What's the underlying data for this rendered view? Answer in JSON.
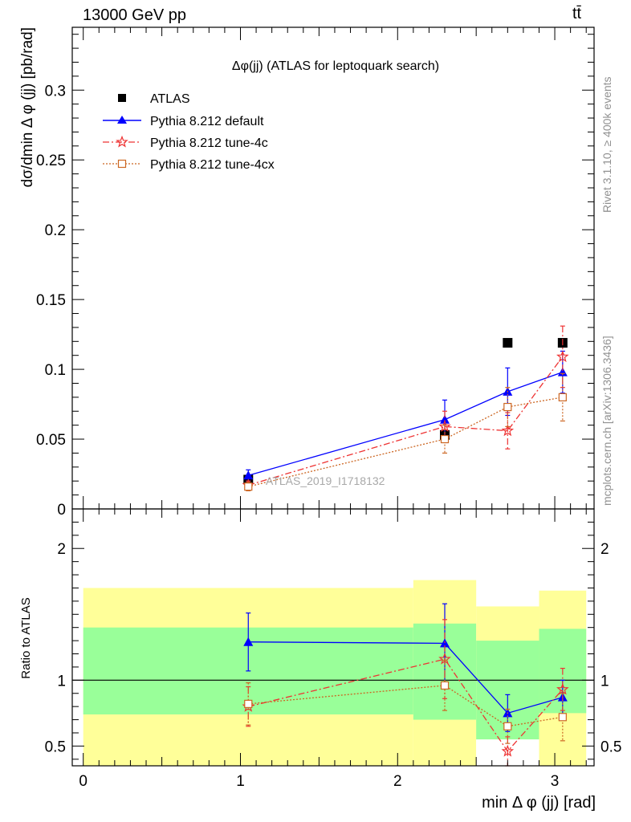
{
  "header": {
    "left": "13000 GeV pp",
    "right": "tt̄"
  },
  "side_labels": {
    "rivet": "Rivet 3.1.10, ≥ 400k events",
    "mcplots": "mcplots.cern.ch [arXiv:1306.3436]"
  },
  "chart_data": [
    {
      "type": "scatter",
      "title": "Δφ(jj) (ATLAS for leptoquark search)",
      "watermark": "ATLAS_2019_I1718132",
      "ylabel": "dσ/dmin Δ φ (jj) [pb/rad]",
      "xlim": [
        -0.07,
        3.25
      ],
      "ylim": [
        0,
        0.345
      ],
      "yticks": [
        0,
        0.05,
        0.1,
        0.15,
        0.2,
        0.25,
        0.3
      ],
      "yticklabels": [
        "0",
        "0.05",
        "0.1",
        "0.15",
        "0.2",
        "0.25",
        "0.3"
      ],
      "legend_position": "top-left",
      "series": [
        {
          "name": "ATLAS",
          "color": "#000000",
          "marker": "square-filled",
          "x": [
            1.05,
            2.3,
            2.7,
            3.05
          ],
          "y": [
            0.021,
            0.053,
            0.119,
            0.119
          ],
          "err": [
            0.0,
            0.0,
            0.0,
            0.0
          ]
        },
        {
          "name": "Pythia 8.212 default",
          "color": "#0000ff",
          "marker": "triangle",
          "line": "solid",
          "x": [
            1.05,
            2.3,
            2.7,
            3.05
          ],
          "y": [
            0.024,
            0.064,
            0.084,
            0.098
          ],
          "err": [
            0.004,
            0.014,
            0.017,
            0.015
          ]
        },
        {
          "name": "Pythia 8.212 tune-4c",
          "color": "#ee3333",
          "marker": "star",
          "line": "dashdot",
          "x": [
            1.05,
            2.3,
            2.7,
            3.05
          ],
          "y": [
            0.017,
            0.059,
            0.056,
            0.109
          ],
          "err": [
            0.003,
            0.011,
            0.013,
            0.022
          ]
        },
        {
          "name": "Pythia 8.212 tune-4cx",
          "color": "#cc6622",
          "marker": "square-open",
          "line": "dotted",
          "x": [
            1.05,
            2.3,
            2.7,
            3.05
          ],
          "y": [
            0.016,
            0.05,
            0.073,
            0.08
          ],
          "err": [
            0.003,
            0.01,
            0.014,
            0.017
          ]
        }
      ]
    },
    {
      "type": "scatter",
      "ylabel": "Ratio to ATLAS",
      "xlabel": "min Δ φ (jj) [rad]",
      "xlim": [
        -0.07,
        3.25
      ],
      "ylim": [
        0.35,
        2.3
      ],
      "yticks": [
        0.5,
        1,
        2
      ],
      "yticklabels": [
        "0.5",
        "1",
        "2"
      ],
      "xticks": [
        0,
        1,
        2,
        3
      ],
      "xticklabels": [
        "0",
        "1",
        "2",
        "3"
      ],
      "reference": 1,
      "bands": [
        {
          "x0": 0.0,
          "x1": 2.1,
          "yellow": [
            0.35,
            1.7
          ],
          "green": [
            0.74,
            1.4
          ]
        },
        {
          "x0": 2.1,
          "x1": 2.5,
          "yellow": [
            0.35,
            1.76
          ],
          "green": [
            0.7,
            1.43
          ]
        },
        {
          "x0": 2.5,
          "x1": 2.9,
          "yellow": [
            0.55,
            1.56
          ],
          "green": [
            0.55,
            1.3
          ],
          "hole": [
            0.35,
            0.55
          ]
        },
        {
          "x0": 2.9,
          "x1": 3.2,
          "yellow": [
            0.35,
            1.68
          ],
          "green": [
            0.75,
            1.39
          ]
        }
      ],
      "series": [
        {
          "name": "Pythia 8.212 default",
          "color": "#0000ff",
          "marker": "triangle",
          "line": "solid",
          "x": [
            1.05,
            2.3,
            2.7,
            3.05
          ],
          "y": [
            1.29,
            1.28,
            0.75,
            0.87
          ],
          "err": [
            0.22,
            0.3,
            0.14,
            0.13
          ]
        },
        {
          "name": "Pythia 8.212 tune-4c",
          "color": "#ee3333",
          "marker": "star",
          "line": "dashdot",
          "x": [
            1.05,
            2.3,
            2.7,
            3.05
          ],
          "y": [
            0.8,
            1.16,
            0.46,
            0.93
          ],
          "err": [
            0.15,
            0.3,
            0.11,
            0.16
          ]
        },
        {
          "name": "Pythia 8.212 tune-4cx",
          "color": "#cc6622",
          "marker": "square-open",
          "line": "dotted",
          "x": [
            1.05,
            2.3,
            2.7,
            3.05
          ],
          "y": [
            0.82,
            0.96,
            0.65,
            0.72
          ],
          "err": [
            0.16,
            0.19,
            0.13,
            0.18
          ]
        }
      ]
    }
  ]
}
